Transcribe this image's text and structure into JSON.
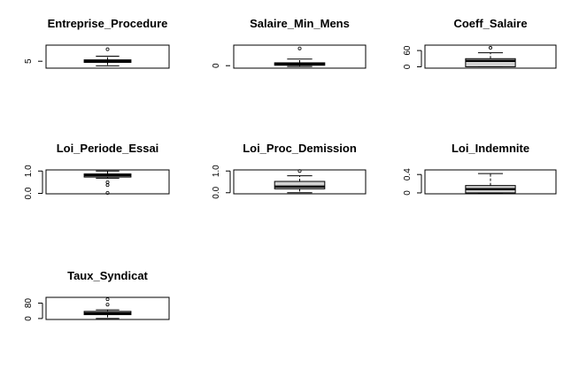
{
  "chart_data": [
    {
      "type": "box",
      "title": "Entreprise_Procedure",
      "ylim": [
        2,
        12
      ],
      "yticks": [
        {
          "value": 5,
          "label": "5"
        }
      ],
      "box": {
        "whisker_low": 3,
        "q1": 4.5,
        "median": 5,
        "q3": 5.6,
        "whisker_high": 7.2
      },
      "outliers": [
        10.2
      ]
    },
    {
      "type": "box",
      "title": "Salaire_Min_Mens",
      "ylim": [
        -0.3,
        2.5
      ],
      "yticks": [
        {
          "value": 0,
          "label": "0"
        }
      ],
      "box": {
        "whisker_low": -0.1,
        "q1": 0.05,
        "median": 0.2,
        "q3": 0.35,
        "whisker_high": 0.8
      },
      "outliers": [
        2.1
      ]
    },
    {
      "type": "box",
      "title": "Coeff_Salaire",
      "ylim": [
        -5,
        80
      ],
      "yticks": [
        {
          "value": 0,
          "label": "0"
        },
        {
          "value": 60,
          "label": "60"
        }
      ],
      "box": {
        "whisker_low": 0,
        "q1": 0,
        "median": 22,
        "q3": 30,
        "whisker_high": 52
      },
      "outliers": [
        70
      ]
    },
    {
      "type": "box",
      "title": "Loi_Periode_Essai",
      "ylim": [
        -0.02,
        1.05
      ],
      "yticks": [
        {
          "value": 0,
          "label": "0.0"
        },
        {
          "value": 1,
          "label": "1.0"
        }
      ],
      "box": {
        "whisker_low": 0.68,
        "q1": 0.73,
        "median": 0.81,
        "q3": 0.87,
        "whisker_high": 1.0
      },
      "outliers": [
        0.5,
        0.37,
        0.02
      ]
    },
    {
      "type": "box",
      "title": "Loi_Proc_Demission",
      "ylim": [
        -0.05,
        1.05
      ],
      "yticks": [
        {
          "value": 0,
          "label": "0.0"
        },
        {
          "value": 1,
          "label": "1.0"
        }
      ],
      "box": {
        "whisker_low": 0,
        "q1": 0.18,
        "median": 0.28,
        "q3": 0.52,
        "whisker_high": 0.78
      },
      "outliers": [
        1.0
      ]
    },
    {
      "type": "box",
      "title": "Loi_Indemnite",
      "ylim": [
        -0.02,
        0.5
      ],
      "yticks": [
        {
          "value": 0,
          "label": "0"
        },
        {
          "value": 0.4,
          "label": "0.4"
        }
      ],
      "box": {
        "whisker_low": 0,
        "q1": 0,
        "median": 0.08,
        "q3": 0.16,
        "whisker_high": 0.42
      },
      "outliers": []
    },
    {
      "type": "box",
      "title": "Taux_Syndicat",
      "ylim": [
        -5,
        110
      ],
      "yticks": [
        {
          "value": 0,
          "label": "0"
        },
        {
          "value": 80,
          "label": "80"
        }
      ],
      "box": {
        "whisker_low": 0,
        "q1": 20,
        "median": 27,
        "q3": 37,
        "whisker_high": 45
      },
      "outliers": [
        72,
        100
      ]
    }
  ]
}
